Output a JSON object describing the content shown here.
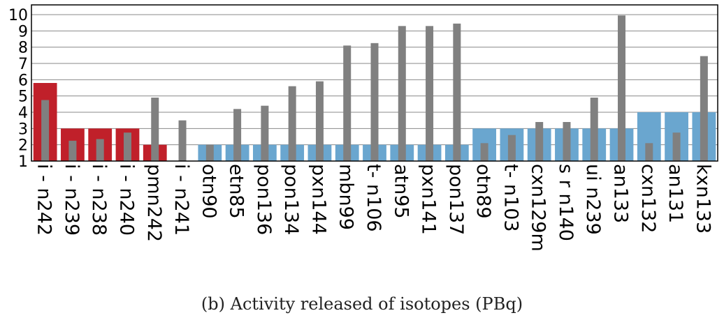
{
  "caption": "(b) Activity released of isotopes (PBq)",
  "chart_data": {
    "type": "bar",
    "title": "",
    "xlabel": "",
    "ylabel": "",
    "ylim": [
      1,
      10.6
    ],
    "yticks": [
      1,
      2,
      3,
      4,
      5,
      6,
      7,
      8,
      9,
      10
    ],
    "grid": true,
    "categories": [
      "i - n242",
      "i - n239",
      "i - n238",
      "i - n240",
      "pmn242",
      "i - n241",
      "otn90",
      "etn85",
      "pon136",
      "pon134",
      "pxn144",
      "mbn99",
      "t- n106",
      "atn95",
      "pxn141",
      "pon137",
      "otn89",
      "t- n103",
      "cxn129m",
      "s r n140",
      "ui n239",
      "an133",
      "cxn132",
      "an131",
      "kxn133"
    ],
    "series": [
      {
        "values": [
          5.8,
          3.0,
          3.0,
          3.0,
          2.0,
          1.0,
          2.0,
          2.0,
          2.0,
          2.0,
          2.0,
          2.0,
          2.0,
          2.0,
          2.0,
          2.0,
          3.0,
          3.0,
          3.0,
          3.0,
          3.0,
          3.0,
          4.0,
          4.0,
          4.0
        ],
        "colors": [
          "#c0202a",
          "#c0202a",
          "#c0202a",
          "#c0202a",
          "#c0202a",
          "#c0202a",
          "#6aa6cf",
          "#6aa6cf",
          "#6aa6cf",
          "#6aa6cf",
          "#6aa6cf",
          "#6aa6cf",
          "#6aa6cf",
          "#6aa6cf",
          "#6aa6cf",
          "#6aa6cf",
          "#6aa6cf",
          "#6aa6cf",
          "#6aa6cf",
          "#6aa6cf",
          "#6aa6cf",
          "#6aa6cf",
          "#6aa6cf",
          "#6aa6cf",
          "#6aa6cf"
        ]
      },
      {
        "values": [
          4.75,
          2.25,
          2.35,
          2.75,
          4.9,
          3.5,
          2.0,
          4.2,
          4.4,
          5.6,
          5.9,
          8.1,
          8.25,
          9.3,
          9.3,
          9.45,
          2.1,
          2.6,
          3.4,
          3.4,
          4.9,
          9.95,
          2.1,
          2.75,
          7.45
        ],
        "color": "#808080"
      }
    ]
  }
}
